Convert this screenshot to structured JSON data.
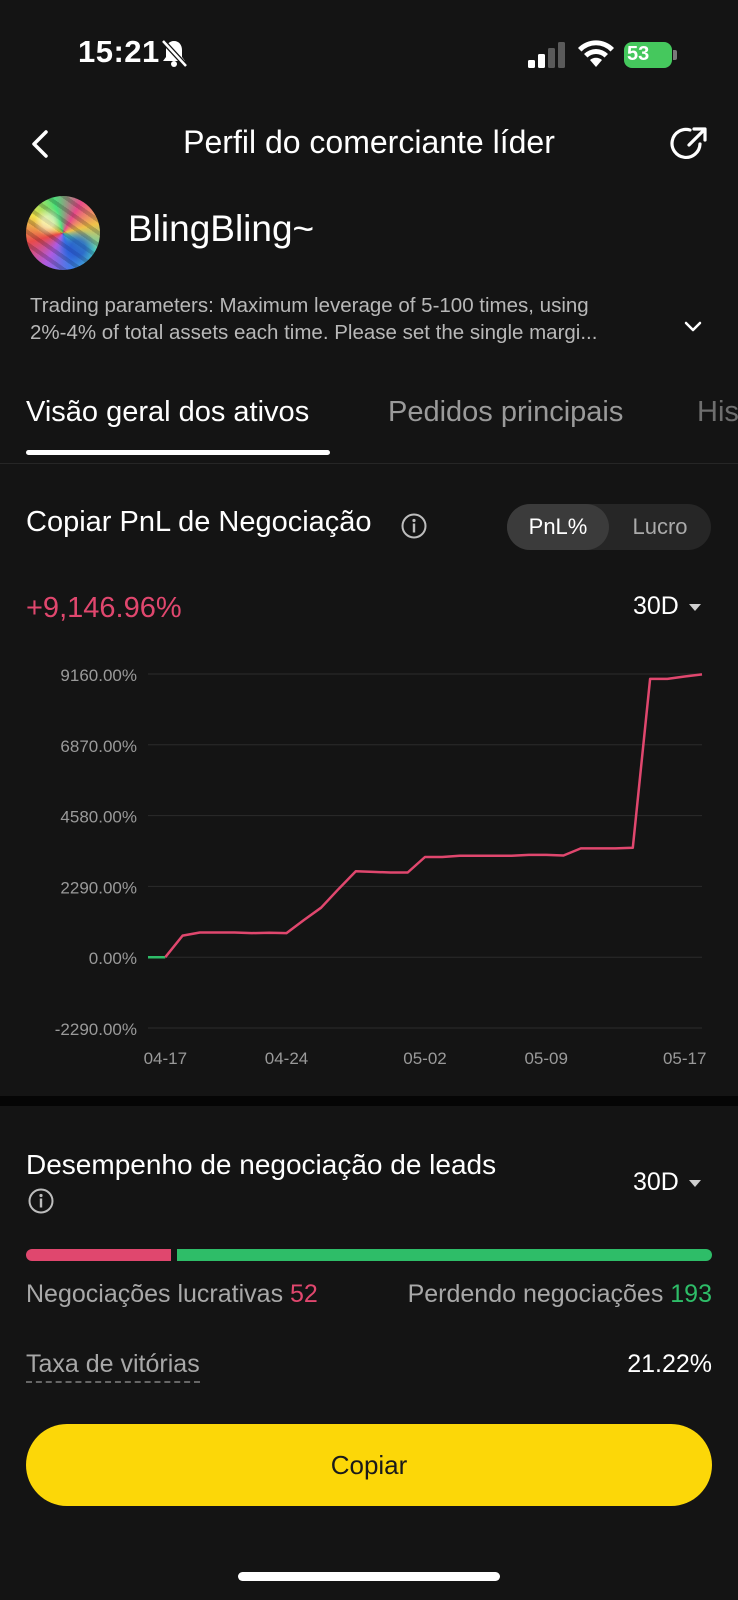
{
  "status_bar": {
    "time": "15:21",
    "battery": "53"
  },
  "header": {
    "title": "Perfil do comerciante líder"
  },
  "profile": {
    "username": "BlingBling~",
    "description_line1": "Trading parameters: Maximum leverage of 5-100 times, using",
    "description_line2": "2%-4% of total assets each time.  Please set the single margi..."
  },
  "tabs": [
    {
      "label": "Visão geral dos ativos",
      "active": true
    },
    {
      "label": "Pedidos principais",
      "active": false
    },
    {
      "label": "His",
      "active": false
    }
  ],
  "pnl_section": {
    "title": "Copiar PnL de Negociação",
    "toggle_options": [
      "PnL%",
      "Lucro"
    ],
    "selected_toggle": "PnL%",
    "value": "+9,146.96%",
    "period": "30D"
  },
  "chart_data": {
    "type": "line",
    "title": "",
    "xlabel": "",
    "ylabel": "",
    "y_ticks": [
      "9160.00%",
      "6870.00%",
      "4580.00%",
      "2290.00%",
      "0.00%",
      "-2290.00%"
    ],
    "x_ticks": [
      "04-17",
      "04-24",
      "05-02",
      "05-09",
      "05-17"
    ],
    "ylim": [
      -2290,
      9160
    ],
    "x_domain": [
      "04-16",
      "05-18"
    ],
    "x": [
      "04-16",
      "04-17",
      "04-18",
      "04-19",
      "04-20",
      "04-21",
      "04-22",
      "04-23",
      "04-24",
      "04-25",
      "04-26",
      "04-27",
      "04-28",
      "04-29",
      "04-30",
      "05-01",
      "05-02",
      "05-03",
      "05-04",
      "05-05",
      "05-06",
      "05-07",
      "05-08",
      "05-09",
      "05-10",
      "05-11",
      "05-12",
      "05-13",
      "05-14",
      "05-15",
      "05-16",
      "05-17",
      "05-18"
    ],
    "values": [
      0,
      0,
      700,
      800,
      800,
      800,
      780,
      790,
      780,
      1200,
      1600,
      2200,
      2780,
      2760,
      2740,
      2740,
      3240,
      3240,
      3280,
      3280,
      3280,
      3280,
      3310,
      3310,
      3290,
      3520,
      3520,
      3520,
      3540,
      9000,
      9000,
      9080,
      9146.96
    ],
    "line_color": "#e0476e",
    "flat_start_color": "#2ebd68",
    "grid": true
  },
  "performance": {
    "title": "Desempenho de negociação de leads",
    "period": "30D",
    "profitable_label": "Negociações lucrativas",
    "profitable_count": "52",
    "losing_label": "Perdendo negociações",
    "losing_count": "193",
    "profitable_ratio": 0.212,
    "winrate_label": "Taxa de vitórias",
    "winrate_value": "21.22%"
  },
  "copy_button": {
    "label": "Copiar"
  },
  "colors": {
    "accent_yellow": "#fcd708",
    "profit_red": "#e0476e",
    "loss_green": "#2ebd68",
    "background": "#141414"
  }
}
